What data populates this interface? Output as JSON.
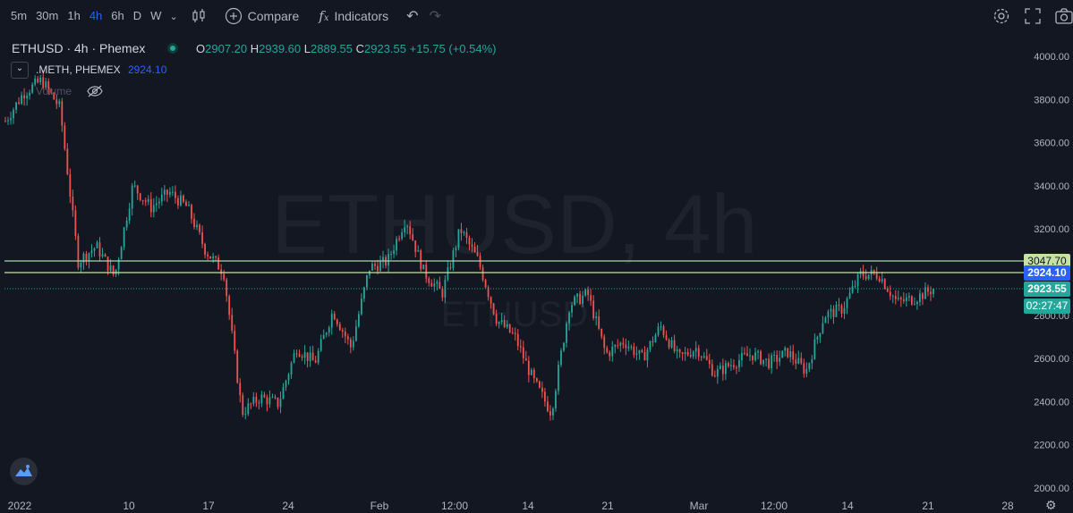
{
  "toolbar": {
    "timeframes": [
      "5m",
      "30m",
      "1h",
      "4h",
      "6h",
      "D",
      "W"
    ],
    "active_timeframe": "4h",
    "compare_label": "Compare",
    "indicators_label": "Indicators"
  },
  "legend": {
    "symbol": "ETHUSD · 4h · Phemex",
    "open_label": "O",
    "open": "2907.20",
    "high_label": "H",
    "high": "2939.60",
    "low_label": "L",
    "low": "2889.55",
    "close_label": "C",
    "close": "2923.55",
    "change": "+15.75 (+0.54%)",
    "compare_symbol": ".METH, PHEMEX",
    "compare_value": "2924.10",
    "volume_label": "Volume"
  },
  "watermark": {
    "title": "ETHUSD, 4h",
    "subtitle": "ETHUSD"
  },
  "price_tags": {
    "line_level": "3047.70",
    "meth_value": "2924.10",
    "close_value": "2923.55",
    "countdown": "02:27:47"
  },
  "colors": {
    "up": "#26a69a",
    "down": "#ef5350",
    "accent": "#2962ff",
    "level_line": "#a5d6a7",
    "background": "#131722"
  },
  "chart_data": {
    "type": "candlestick",
    "symbol": "ETHUSD",
    "interval": "4h",
    "y_ticks": [
      2000,
      2200,
      2400,
      2600,
      2800,
      3000,
      3200,
      3400,
      3600,
      3800,
      4000
    ],
    "y_tick_labels": [
      "2000.00",
      "2200.00",
      "2400.00",
      "2600.00",
      "2800.00",
      "3000.00",
      "3200.00",
      "3400.00",
      "3600.00",
      "3800.00",
      "4000.00"
    ],
    "ylim": [
      1990,
      4050
    ],
    "x_tick_labels": [
      "2022",
      "10",
      "17",
      "24",
      "Feb",
      "12:00",
      "14",
      "21",
      "Mar",
      "12:00",
      "14",
      "21",
      "28"
    ],
    "horizontal_lines": [
      3047.7,
      2990,
      2923.55
    ],
    "path": [
      3700,
      3830,
      3890,
      3760,
      3050,
      3120,
      2980,
      3400,
      3300,
      3370,
      3300,
      3100,
      3000,
      2350,
      2420,
      2390,
      2650,
      2580,
      2820,
      2650,
      3020,
      3050,
      3250,
      3000,
      2900,
      3200,
      3050,
      2780,
      2700,
      2500,
      2350,
      2850,
      2900,
      2620,
      2680,
      2600,
      2750,
      2600,
      2650,
      2530,
      2580,
      2620,
      2580,
      2630,
      2540,
      2800,
      2830,
      2990,
      2990,
      2860,
      2880,
      2923
    ]
  }
}
